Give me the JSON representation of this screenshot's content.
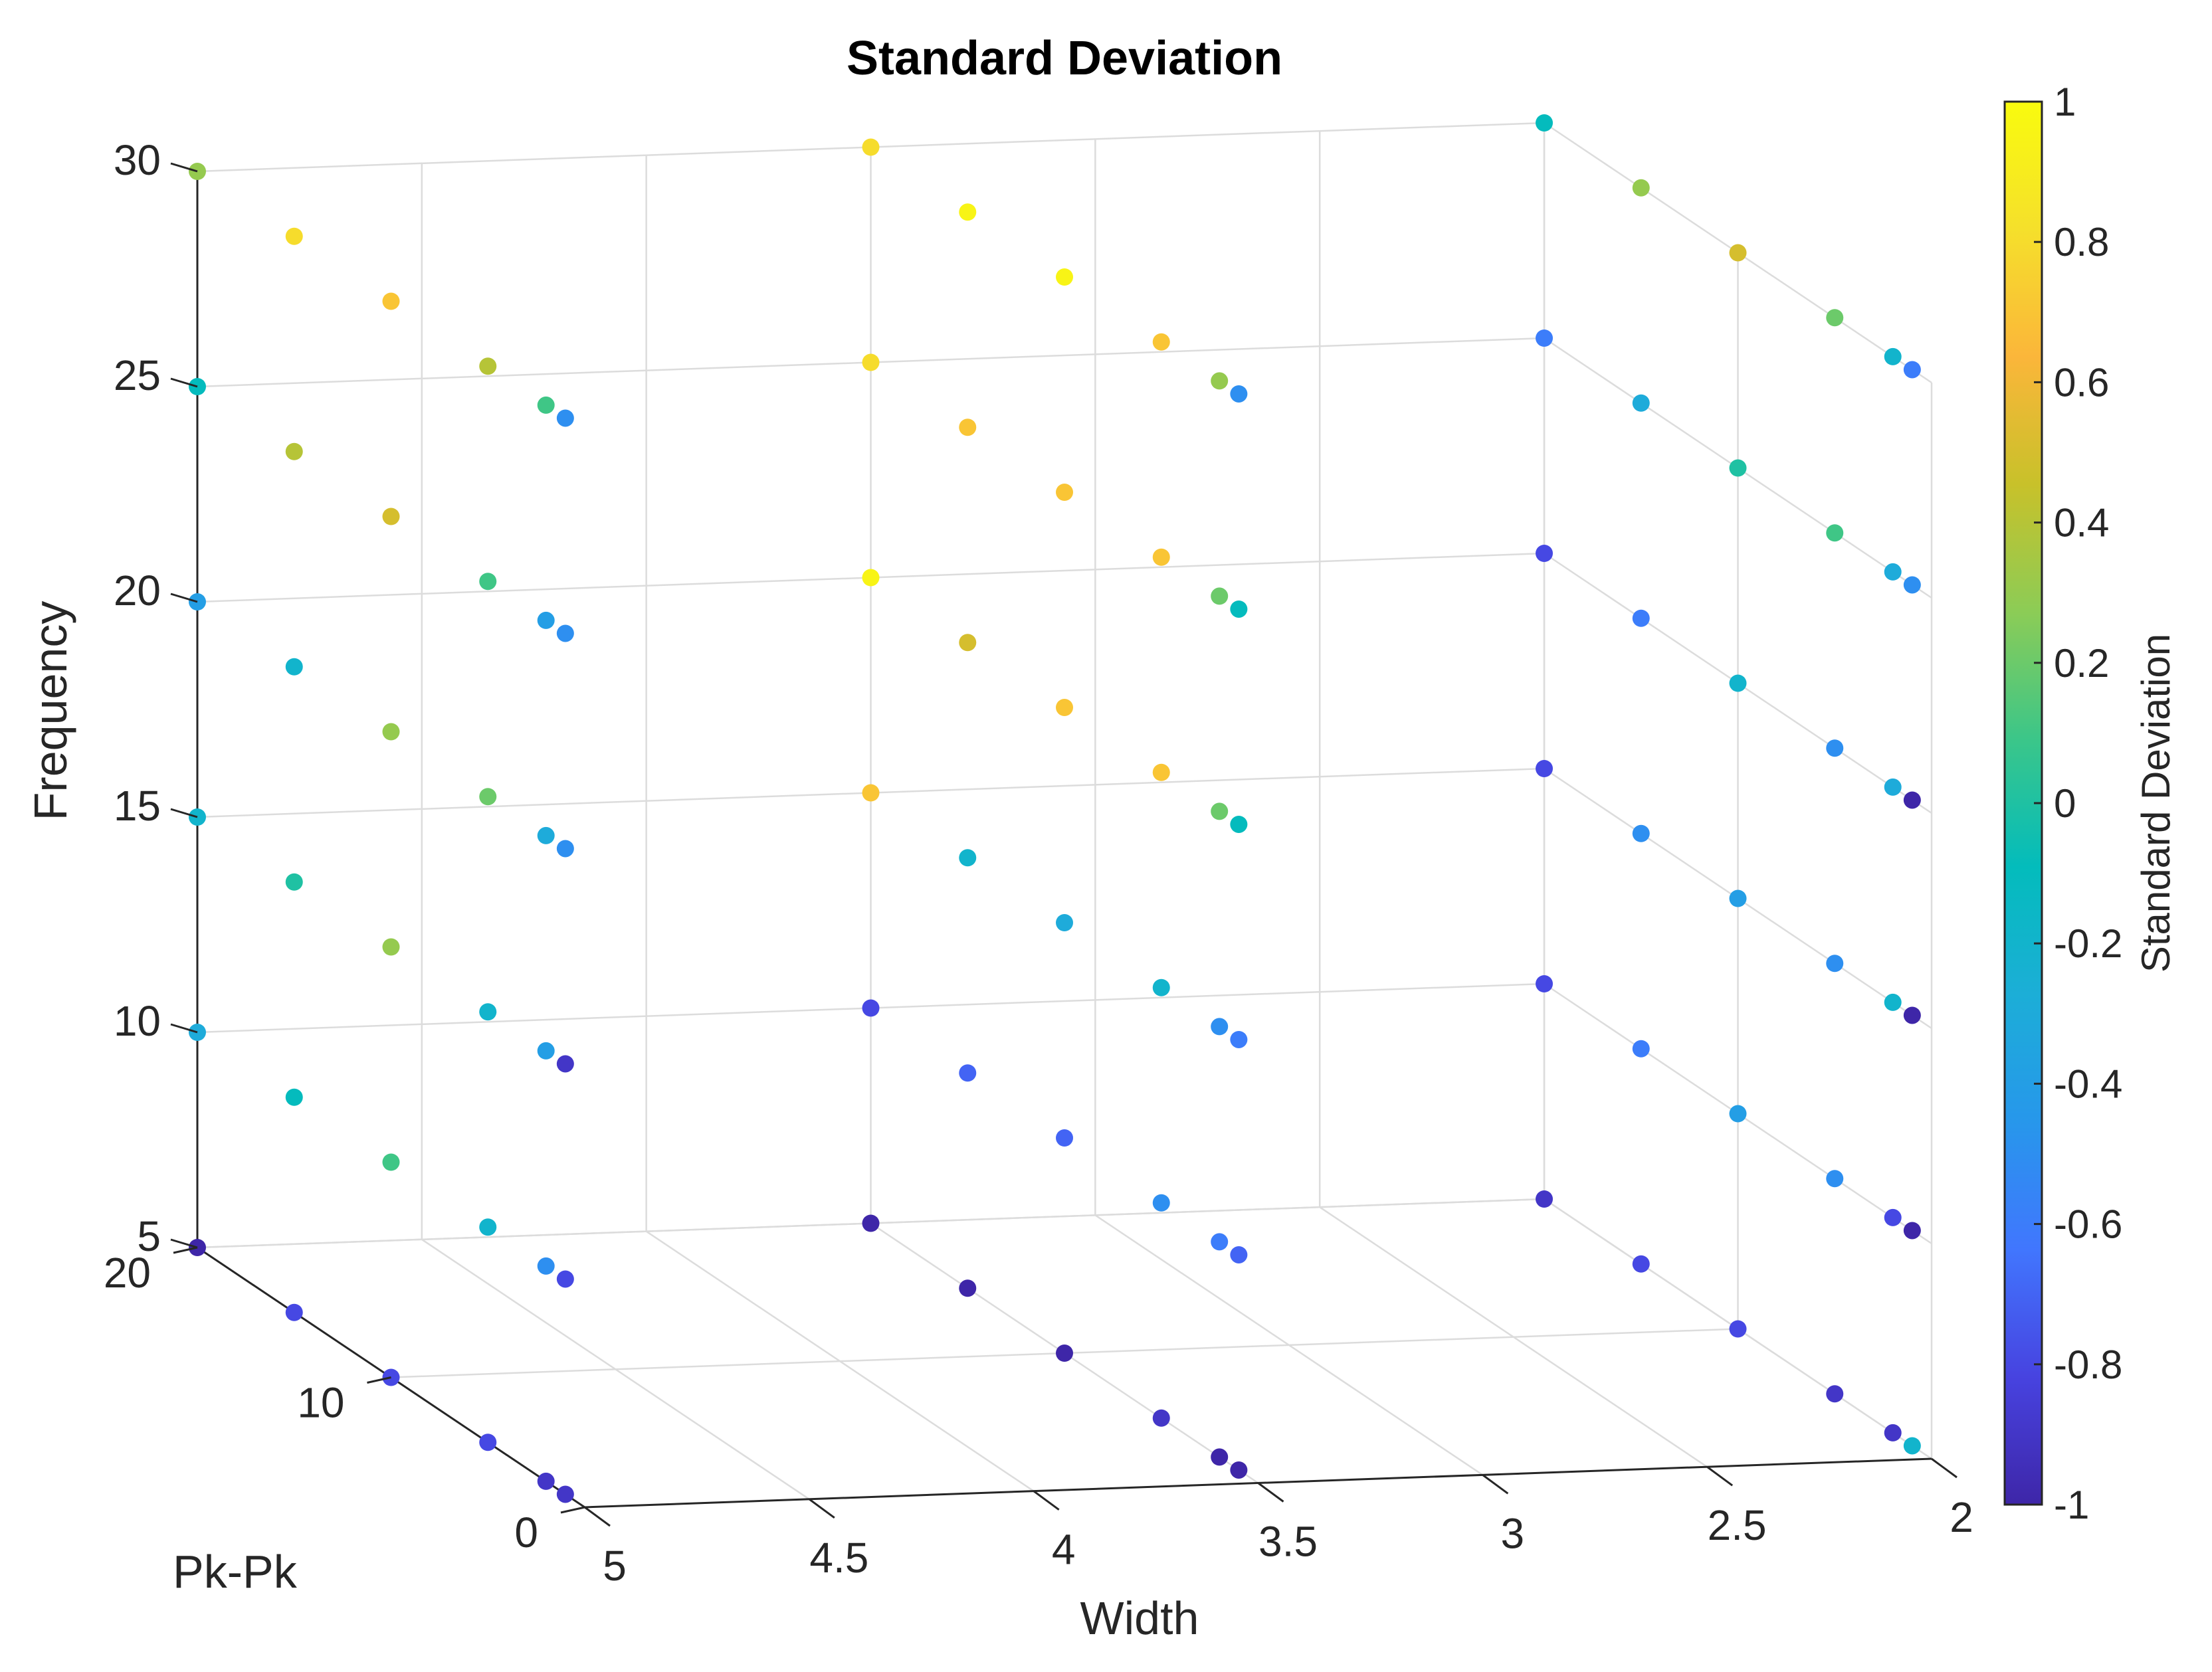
{
  "chart_data": {
    "type": "scatter3",
    "title": "Standard Deviation",
    "xlabel": "Width",
    "ylabel": "Pk-Pk",
    "zlabel": "Frequency",
    "colorbar_label": "Standard Deviation",
    "xlim": [
      2,
      5
    ],
    "ylim": [
      0,
      20
    ],
    "zlim": [
      5,
      30
    ],
    "clim": [
      -1,
      1
    ],
    "xticks": [
      2,
      2.5,
      3,
      3.5,
      4,
      4.5,
      5
    ],
    "xtick_labels": [
      "2",
      "2.5",
      "3",
      "3.5",
      "4",
      "4.5",
      "5"
    ],
    "yticks": [
      0,
      10,
      20
    ],
    "ytick_labels": [
      "0",
      "10",
      "20"
    ],
    "zticks": [
      5,
      10,
      15,
      20,
      25,
      30
    ],
    "ztick_labels": [
      "5",
      "10",
      "15",
      "20",
      "25",
      "30"
    ],
    "cticks": [
      -1,
      -0.8,
      -0.6,
      -0.4,
      -0.2,
      0,
      0.2,
      0.4,
      0.6,
      0.8,
      1
    ],
    "ctick_labels": [
      "-1",
      "-0.8",
      "-0.6",
      "-0.4",
      "-0.2",
      "0",
      "0.2",
      "0.4",
      "0.6",
      "0.8",
      "1"
    ],
    "grid": true,
    "colormap": [
      "#3e26a8",
      "#4743e0",
      "#4176fe",
      "#2797eb",
      "#1caed7",
      "#03bcbc",
      "#3bc689",
      "#8ccc56",
      "#c8c12a",
      "#fbb63a",
      "#f5e02b",
      "#f9fb0e"
    ],
    "series": [
      {
        "name": "width=5",
        "x": 5,
        "ys": [
          20,
          15,
          10,
          5,
          2,
          1
        ],
        "zs": [
          5,
          10,
          15,
          20,
          25,
          30
        ],
        "c": [
          [
            -1.0,
            -0.8,
            -0.8,
            -0.8,
            -0.9,
            -0.9
          ],
          [
            -0.3,
            -0.1,
            0.1,
            -0.2,
            -0.5,
            -0.8
          ],
          [
            -0.2,
            0.0,
            0.3,
            -0.2,
            -0.4,
            -0.9
          ],
          [
            -0.4,
            -0.2,
            0.3,
            0.2,
            -0.3,
            -0.5
          ],
          [
            -0.1,
            0.4,
            0.5,
            0.1,
            -0.4,
            -0.5
          ],
          [
            0.3,
            0.8,
            0.7,
            0.4,
            0.1,
            -0.5
          ]
        ]
      },
      {
        "name": "width=2",
        "x": 2,
        "ys": [
          20,
          15,
          10,
          5,
          2,
          1
        ],
        "zs": [
          5,
          10,
          15,
          20,
          25,
          30
        ],
        "c": [
          [
            -0.9,
            -0.8,
            -0.8,
            -0.9,
            -0.9,
            -0.2
          ],
          [
            -0.8,
            -0.6,
            -0.4,
            -0.5,
            -0.8,
            -1.0
          ],
          [
            -0.8,
            -0.5,
            -0.4,
            -0.5,
            -0.2,
            -1.0
          ],
          [
            -0.8,
            -0.6,
            -0.2,
            -0.5,
            -0.3,
            -1.0
          ],
          [
            -0.6,
            -0.3,
            0.0,
            0.1,
            -0.3,
            -0.5
          ],
          [
            -0.1,
            0.3,
            0.5,
            0.2,
            -0.2,
            -0.6
          ]
        ]
      },
      {
        "name": "width=3.5",
        "x": 3.5,
        "ys": [
          20,
          15,
          10,
          5,
          2,
          1
        ],
        "zs": [
          5,
          10,
          15,
          20,
          25,
          30
        ],
        "c": [
          [
            -1.0,
            -1.0,
            -1.0,
            -0.9,
            -1.0,
            -1.0
          ],
          [
            -0.8,
            -0.7,
            -0.7,
            -0.5,
            -0.6,
            -0.7
          ],
          [
            0.7,
            -0.2,
            -0.3,
            -0.2,
            -0.5,
            -0.6
          ],
          [
            0.95,
            0.5,
            0.7,
            0.7,
            0.2,
            -0.1
          ],
          [
            0.8,
            0.7,
            0.7,
            0.7,
            0.2,
            -0.1
          ],
          [
            0.8,
            0.95,
            0.95,
            0.7,
            0.3,
            -0.5
          ]
        ]
      }
    ]
  }
}
